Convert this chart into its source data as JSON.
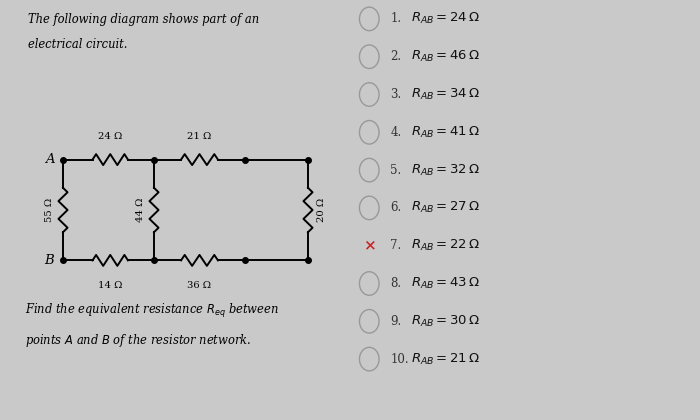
{
  "title_line1": "The following diagram shows part of an",
  "title_line2": "electrical circuit.",
  "bg_color": "#c9c9c9",
  "options": [
    {
      "num": "1.",
      "text": "$R_{AB} = 24\\,\\Omega$",
      "marker": "circle"
    },
    {
      "num": "2.",
      "text": "$R_{AB} = 46\\,\\Omega$",
      "marker": "circle"
    },
    {
      "num": "3.",
      "text": "$R_{AB} = 34\\,\\Omega$",
      "marker": "circle"
    },
    {
      "num": "4.",
      "text": "$R_{AB} = 41\\,\\Omega$",
      "marker": "circle"
    },
    {
      "num": "5.",
      "text": "$R_{AB} = 32\\,\\Omega$",
      "marker": "circle"
    },
    {
      "num": "6.",
      "text": "$R_{AB} = 27\\,\\Omega$",
      "marker": "circle"
    },
    {
      "num": "7.",
      "text": "$R_{AB} = 22\\,\\Omega$",
      "marker": "x"
    },
    {
      "num": "8.",
      "text": "$R_{AB} = 43\\,\\Omega$",
      "marker": "circle"
    },
    {
      "num": "9.",
      "text": "$R_{AB} = 30\\,\\Omega$",
      "marker": "circle"
    },
    {
      "num": "10.",
      "text": "$R_{AB} = 21\\,\\Omega$",
      "marker": "circle"
    }
  ],
  "circuit": {
    "xA": 0.18,
    "xJ1": 0.44,
    "xJ2": 0.7,
    "xR": 0.88,
    "yT": 0.62,
    "yB": 0.38,
    "label_24": "24 Ω",
    "label_21": "21 Ω",
    "label_55": "55 Ω",
    "label_44": "44 Ω",
    "label_20": "20 Ω",
    "label_14": "14 Ω",
    "label_36": "36 Ω"
  },
  "bottom_text1": "Find the equivalent resistance $R_{eq}$ between",
  "bottom_text2": "points $A$ and $B$ of the resistor network.",
  "left_panel_color": "#d2d2d2",
  "right_panel_color": "#c9c9c9"
}
